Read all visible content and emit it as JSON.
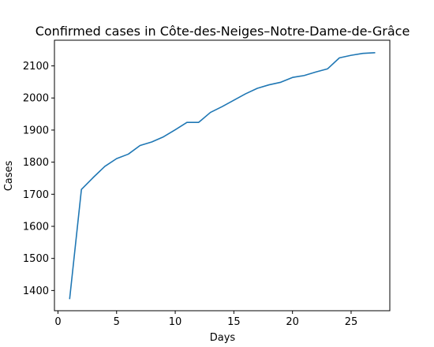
{
  "chart_data": {
    "type": "line",
    "title": "Confirmed cases in Côte-des-Neiges–Notre-Dame-de-Grâce",
    "xlabel": "Days",
    "ylabel": "Cases",
    "xlim": [
      -0.3,
      28.3
    ],
    "ylim": [
      1337,
      2180
    ],
    "xticks": [
      0,
      5,
      10,
      15,
      20,
      25
    ],
    "yticks": [
      1400,
      1500,
      1600,
      1700,
      1800,
      1900,
      2000,
      2100
    ],
    "grid": false,
    "series": [
      {
        "color": "#1f77b4",
        "x": [
          1,
          2,
          3,
          4,
          5,
          6,
          7,
          8,
          9,
          10,
          11,
          12,
          13,
          14,
          15,
          16,
          17,
          18,
          19,
          20,
          21,
          22,
          23,
          24,
          25,
          26,
          27
        ],
        "y": [
          1375,
          1715,
          1752,
          1787,
          1811,
          1825,
          1852,
          1863,
          1879,
          1901,
          1924,
          1924,
          1955,
          1973,
          1993,
          2013,
          2030,
          2041,
          2049,
          2064,
          2070,
          2081,
          2091,
          2125,
          2133,
          2139,
          2141
        ]
      }
    ]
  }
}
